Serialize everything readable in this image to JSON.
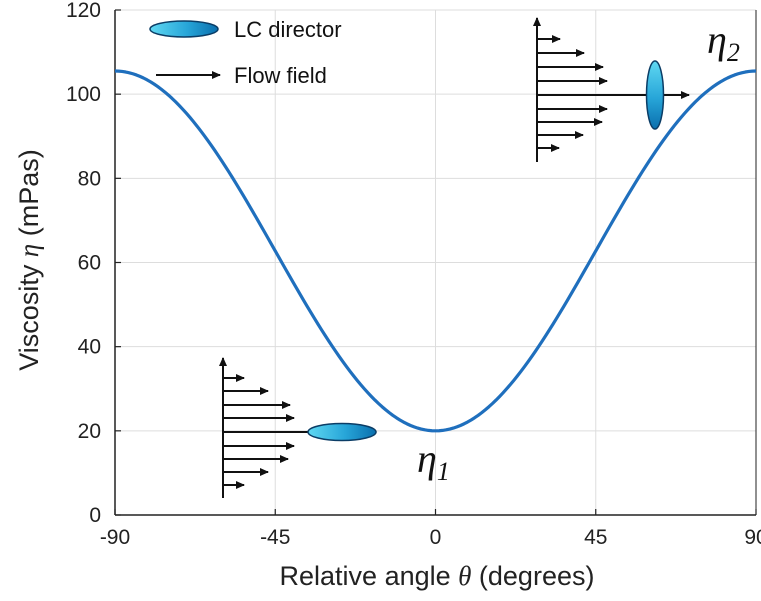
{
  "chart_data": {
    "type": "line",
    "xlabel_parts": [
      "Relative angle ",
      "θ",
      " (degrees)"
    ],
    "ylabel_parts": [
      "Viscosity ",
      "η",
      " (mPas)"
    ],
    "xlim": [
      -90,
      90
    ],
    "ylim": [
      0,
      120
    ],
    "xticks": [
      -90,
      -45,
      0,
      45,
      90
    ],
    "yticks": [
      0,
      20,
      40,
      60,
      80,
      100,
      120
    ],
    "grid": true,
    "series": [
      {
        "color": "#1f6fbd",
        "formula": "eta1*cos^2(theta) + eta2*sin^2(theta)",
        "params": {
          "eta1": 20,
          "eta2": 105.5
        },
        "x": [
          -90,
          -75,
          -60,
          -45,
          -30,
          -15,
          0,
          15,
          30,
          45,
          60,
          75,
          90
        ],
        "y": [
          105.5,
          99.8,
          84.1,
          62.8,
          41.4,
          25.7,
          20,
          25.7,
          41.4,
          62.8,
          84.1,
          99.8,
          105.5
        ]
      }
    ],
    "legend": {
      "position": "top-left",
      "items": [
        {
          "label": "LC director",
          "marker": "ellipse"
        },
        {
          "label": "Flow field",
          "marker": "arrow"
        }
      ]
    },
    "annotations": [
      {
        "symbol": "η",
        "subscript": "1",
        "x": 0,
        "y": 20,
        "director": "parallel-to-flow"
      },
      {
        "symbol": "η",
        "subscript": "2",
        "x": 90,
        "y": 105.5,
        "director": "perpendicular-to-flow"
      }
    ]
  },
  "colors": {
    "curve": "#1f6fbd",
    "director_light": "#5fd8f2",
    "director_dark": "#0a6fae",
    "axes": "#222222",
    "grid": "#dddddd"
  }
}
